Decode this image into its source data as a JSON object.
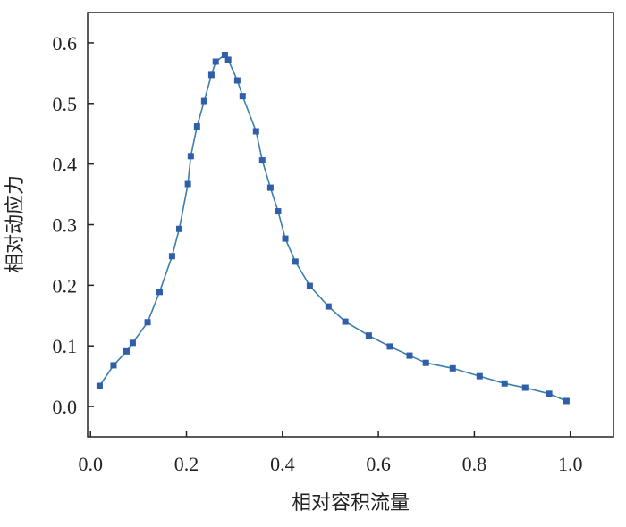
{
  "chart_data": {
    "type": "line",
    "x_label": "相对容积流量",
    "y_label": "相对动应力",
    "x": [
      0.019,
      0.048,
      0.075,
      0.088,
      0.119,
      0.144,
      0.17,
      0.185,
      0.203,
      0.209,
      0.222,
      0.237,
      0.252,
      0.261,
      0.28,
      0.287,
      0.306,
      0.317,
      0.345,
      0.358,
      0.375,
      0.391,
      0.406,
      0.427,
      0.457,
      0.496,
      0.531,
      0.58,
      0.624,
      0.665,
      0.699,
      0.755,
      0.811,
      0.863,
      0.906,
      0.956,
      0.992
    ],
    "series": [
      {
        "color": "#2f5fa8",
        "line_color": "#3a7fae",
        "values": [
          0.034,
          0.068,
          0.091,
          0.105,
          0.139,
          0.189,
          0.248,
          0.293,
          0.367,
          0.413,
          0.462,
          0.504,
          0.547,
          0.569,
          0.58,
          0.572,
          0.538,
          0.512,
          0.454,
          0.406,
          0.361,
          0.322,
          0.277,
          0.239,
          0.199,
          0.165,
          0.14,
          0.117,
          0.099,
          0.084,
          0.072,
          0.063,
          0.05,
          0.038,
          0.031,
          0.021,
          0.009
        ]
      }
    ],
    "xlim": [
      -0.006,
      1.09
    ],
    "ylim": [
      -0.05,
      0.65
    ],
    "xticks": [
      {
        "value": 0,
        "label": "0.0"
      },
      {
        "value": 0.2,
        "label": "0.2"
      },
      {
        "value": 0.4,
        "label": "0.4"
      },
      {
        "value": 0.6,
        "label": "0.6"
      },
      {
        "value": 0.8,
        "label": "0.8"
      },
      {
        "value": 1,
        "label": "1.0"
      }
    ],
    "yticks": [
      {
        "value": 0,
        "label": "0.0"
      },
      {
        "value": 0.1,
        "label": "0.1"
      },
      {
        "value": 0.2,
        "label": "0.2"
      },
      {
        "value": 0.3,
        "label": "0.3"
      },
      {
        "value": 0.4,
        "label": "0.4"
      },
      {
        "value": 0.5,
        "label": "0.5"
      },
      {
        "value": 0.6,
        "label": "0.6"
      }
    ]
  }
}
